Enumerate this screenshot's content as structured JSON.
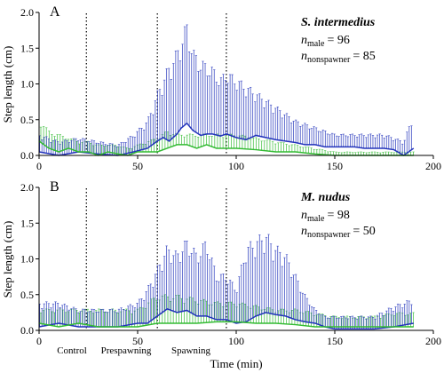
{
  "chart_data": [
    {
      "type": "line",
      "panel_letter": "A",
      "species": "S. intermedius",
      "n_male_text": "= 96",
      "n_nonspawner_text": "= 85",
      "n_male_sub": "male",
      "n_nonspawner_sub": "nonspawner",
      "n_letter": "n",
      "ylabel": "Step length (cm)",
      "xlim": [
        0,
        200
      ],
      "ylim": [
        0,
        2.0
      ],
      "xticks": [
        0,
        50,
        100,
        150,
        200
      ],
      "yticks": [
        "0.0",
        "0.5",
        "1.0",
        "1.5",
        "2.0"
      ],
      "phase_boundaries": [
        24,
        60,
        95
      ],
      "series": [
        {
          "color": "#2233bb",
          "x": [
            0,
            10,
            20,
            30,
            40,
            48,
            55,
            60,
            63,
            66,
            70,
            72,
            75,
            78,
            82,
            85,
            88,
            92,
            95,
            100,
            105,
            110,
            115,
            120,
            125,
            130,
            135,
            140,
            145,
            150,
            155,
            160,
            165,
            170,
            175,
            180,
            185,
            190
          ],
          "values": [
            0.05,
            0.0,
            0.05,
            0.02,
            0.0,
            0.05,
            0.1,
            0.2,
            0.25,
            0.2,
            0.3,
            0.38,
            0.45,
            0.35,
            0.28,
            0.3,
            0.3,
            0.27,
            0.3,
            0.25,
            0.22,
            0.28,
            0.25,
            0.22,
            0.2,
            0.18,
            0.15,
            0.15,
            0.12,
            0.12,
            0.12,
            0.12,
            0.1,
            0.1,
            0.1,
            0.08,
            0.0,
            0.1
          ],
          "err_upper": [
            0.3,
            0.2,
            0.25,
            0.2,
            0.15,
            0.3,
            0.5,
            0.9,
            1.1,
            1.3,
            1.5,
            1.65,
            1.9,
            1.5,
            1.35,
            1.3,
            1.25,
            1.1,
            1.2,
            1.1,
            1.0,
            0.9,
            0.8,
            0.7,
            0.6,
            0.5,
            0.45,
            0.4,
            0.35,
            0.3,
            0.3,
            0.3,
            0.3,
            0.3,
            0.3,
            0.25,
            0.2,
            0.6
          ]
        },
        {
          "color": "#33bb33",
          "x": [
            0,
            5,
            10,
            15,
            20,
            25,
            30,
            35,
            40,
            45,
            50,
            55,
            60,
            65,
            70,
            75,
            80,
            85,
            90,
            95,
            100,
            110,
            120,
            130,
            140,
            150,
            160,
            170,
            180,
            190
          ],
          "values": [
            0.2,
            0.1,
            0.05,
            0.1,
            0.05,
            0.05,
            0.0,
            0.05,
            0.02,
            0.0,
            0.05,
            0.05,
            0.05,
            0.1,
            0.15,
            0.15,
            0.1,
            0.15,
            0.1,
            0.1,
            0.1,
            0.08,
            0.05,
            0.05,
            0.02,
            0.0,
            0.0,
            0.0,
            0.0,
            0.0
          ],
          "err_upper": [
            0.5,
            0.35,
            0.3,
            0.25,
            0.2,
            0.2,
            0.15,
            0.15,
            0.15,
            0.1,
            0.15,
            0.2,
            0.25,
            0.35,
            0.3,
            0.3,
            0.3,
            0.3,
            0.3,
            0.3,
            0.3,
            0.25,
            0.2,
            0.15,
            0.1,
            0.05,
            0.05,
            0.05,
            0.05,
            0.05
          ]
        }
      ]
    },
    {
      "type": "line",
      "panel_letter": "B",
      "species": "M. nudus",
      "n_male_text": "= 98",
      "n_nonspawner_text": "= 50",
      "n_male_sub": "male",
      "n_nonspawner_sub": "nonspawner",
      "n_letter": "n",
      "ylabel": "Step length (cm)",
      "xlabel": "Time (min)",
      "xlim": [
        0,
        200
      ],
      "ylim": [
        0,
        2.0
      ],
      "xticks": [
        0,
        50,
        100,
        150,
        200
      ],
      "yticks": [
        "0.0",
        "0.5",
        "1.0",
        "1.5",
        "2.0"
      ],
      "phase_boundaries": [
        24,
        60,
        95
      ],
      "phase_labels": [
        "Control",
        "Prespawning",
        "Spawning"
      ],
      "series": [
        {
          "color": "#2233bb",
          "x": [
            0,
            10,
            20,
            30,
            40,
            50,
            55,
            60,
            65,
            70,
            75,
            80,
            85,
            90,
            95,
            100,
            105,
            110,
            115,
            120,
            125,
            130,
            135,
            140,
            145,
            150,
            160,
            170,
            180,
            190
          ],
          "values": [
            0.05,
            0.1,
            0.05,
            0.05,
            0.05,
            0.1,
            0.1,
            0.2,
            0.3,
            0.25,
            0.28,
            0.2,
            0.2,
            0.15,
            0.15,
            0.1,
            0.12,
            0.2,
            0.25,
            0.22,
            0.2,
            0.15,
            0.12,
            0.1,
            0.05,
            0.02,
            0.02,
            0.02,
            0.05,
            0.1
          ],
          "err_upper": [
            0.4,
            0.4,
            0.3,
            0.3,
            0.3,
            0.4,
            0.6,
            0.9,
            1.2,
            1.1,
            1.3,
            1.1,
            1.3,
            0.8,
            0.8,
            0.6,
            1.2,
            1.3,
            1.4,
            1.2,
            1.1,
            0.8,
            0.5,
            0.3,
            0.2,
            0.2,
            0.2,
            0.2,
            0.35,
            0.45
          ]
        },
        {
          "color": "#33bb33",
          "x": [
            0,
            10,
            20,
            30,
            40,
            50,
            60,
            70,
            80,
            90,
            100,
            110,
            120,
            130,
            140,
            150,
            160,
            170,
            180,
            190
          ],
          "values": [
            0.1,
            0.05,
            0.1,
            0.05,
            0.05,
            0.05,
            0.1,
            0.1,
            0.1,
            0.12,
            0.12,
            0.1,
            0.1,
            0.08,
            0.05,
            0.05,
            0.05,
            0.05,
            0.05,
            0.05
          ],
          "err_upper": [
            0.3,
            0.3,
            0.3,
            0.3,
            0.3,
            0.3,
            0.5,
            0.5,
            0.45,
            0.4,
            0.4,
            0.35,
            0.3,
            0.3,
            0.25,
            0.2,
            0.2,
            0.2,
            0.25,
            0.25
          ]
        }
      ]
    }
  ]
}
